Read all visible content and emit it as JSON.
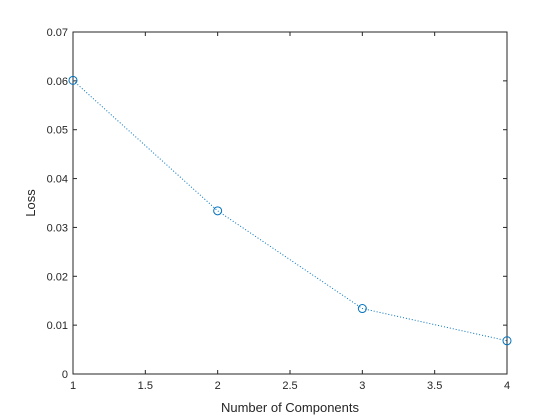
{
  "chart_data": {
    "type": "line",
    "title": "",
    "xlabel": "Number of Components",
    "ylabel": "Loss",
    "xlim": [
      1,
      4
    ],
    "ylim": [
      0,
      0.07
    ],
    "x_ticks": [
      "1",
      "1.5",
      "2",
      "2.5",
      "3",
      "3.5",
      "4"
    ],
    "y_ticks": [
      "0",
      "0.01",
      "0.02",
      "0.03",
      "0.04",
      "0.05",
      "0.06",
      "0.07"
    ],
    "grid": false,
    "line_style": "dotted",
    "marker": "circle",
    "series": [
      {
        "x": [
          1,
          2,
          3,
          4
        ],
        "y": [
          0.0601,
          0.0334,
          0.0134,
          0.0068
        ],
        "color": "#0072BD"
      }
    ]
  }
}
